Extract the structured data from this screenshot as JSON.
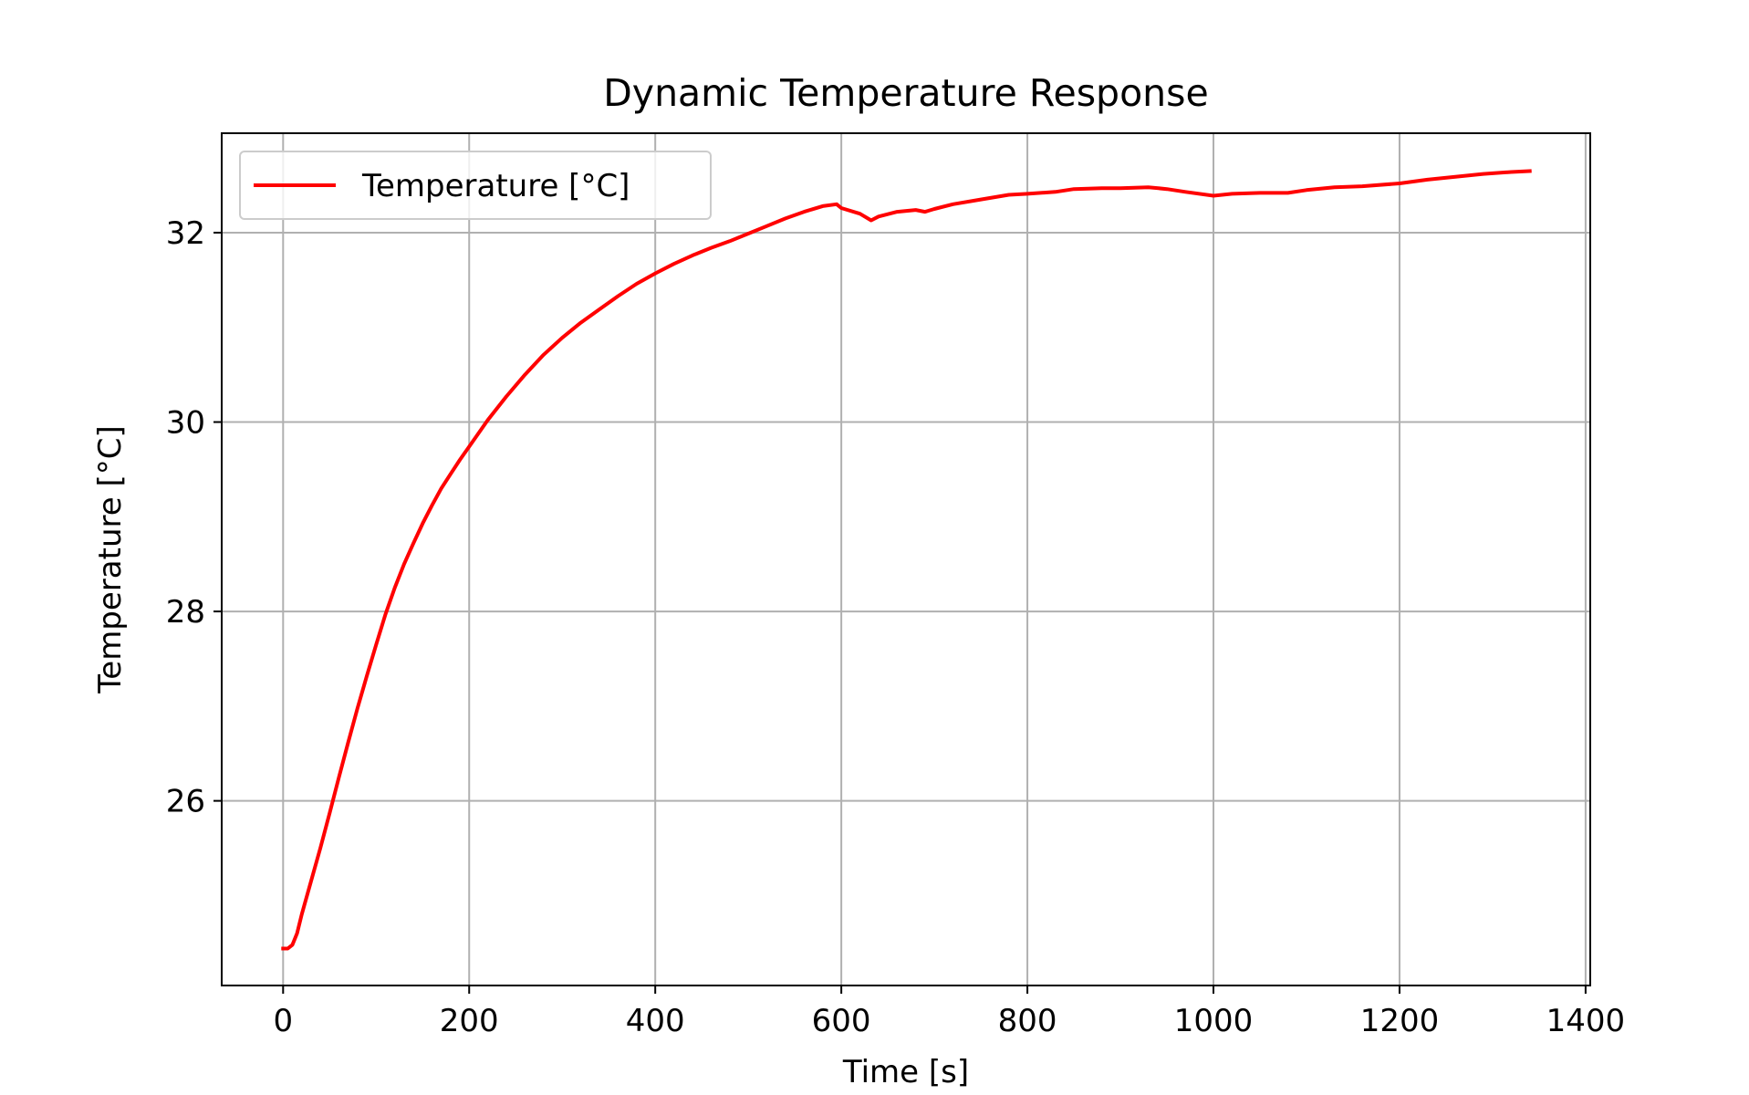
{
  "chart_data": {
    "type": "line",
    "title": "Dynamic Temperature Response",
    "xlabel": "Time [s]",
    "ylabel": "Temperature [°C]",
    "xlim": [
      -66,
      1405
    ],
    "ylim": [
      24.05,
      33.05
    ],
    "xticks": [
      0,
      200,
      400,
      600,
      800,
      1000,
      1200,
      1400
    ],
    "yticks": [
      26,
      28,
      30,
      32
    ],
    "grid": true,
    "legend_position": "upper-left",
    "series": [
      {
        "name": "Temperature [°C]",
        "color": "#ff0000",
        "x": [
          0,
          5,
          10,
          15,
          20,
          30,
          40,
          50,
          60,
          70,
          80,
          90,
          100,
          110,
          120,
          130,
          140,
          150,
          160,
          170,
          180,
          190,
          200,
          220,
          240,
          260,
          280,
          300,
          320,
          340,
          360,
          380,
          400,
          420,
          440,
          460,
          480,
          500,
          520,
          540,
          560,
          580,
          595,
          600,
          620,
          632,
          640,
          660,
          680,
          690,
          700,
          720,
          750,
          780,
          800,
          830,
          850,
          880,
          900,
          930,
          950,
          970,
          1000,
          1020,
          1050,
          1080,
          1100,
          1130,
          1160,
          1200,
          1230,
          1260,
          1290,
          1320,
          1340
        ],
        "y": [
          24.44,
          24.44,
          24.48,
          24.6,
          24.8,
          25.15,
          25.5,
          25.87,
          26.25,
          26.62,
          26.98,
          27.32,
          27.65,
          27.97,
          28.25,
          28.5,
          28.72,
          28.93,
          29.12,
          29.3,
          29.45,
          29.6,
          29.74,
          30.02,
          30.27,
          30.5,
          30.71,
          30.89,
          31.05,
          31.19,
          31.33,
          31.46,
          31.57,
          31.67,
          31.76,
          31.84,
          31.91,
          31.99,
          32.07,
          32.15,
          32.22,
          32.28,
          32.3,
          32.26,
          32.2,
          32.13,
          32.17,
          32.22,
          32.24,
          32.22,
          32.25,
          32.3,
          32.35,
          32.4,
          32.41,
          32.43,
          32.46,
          32.47,
          32.47,
          32.48,
          32.46,
          32.43,
          32.39,
          32.41,
          32.42,
          32.42,
          32.45,
          32.48,
          32.49,
          32.52,
          32.56,
          32.59,
          32.62,
          32.64,
          32.65
        ]
      }
    ]
  }
}
